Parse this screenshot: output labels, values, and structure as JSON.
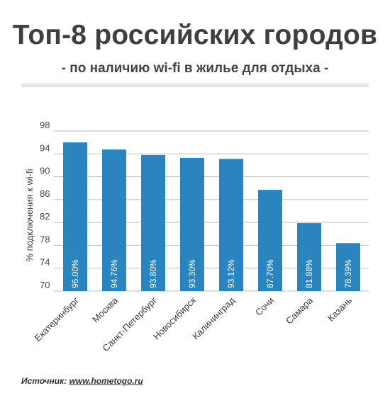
{
  "title": "Топ-8 российских городов",
  "subtitle": "- по наличию wi-fi в жилье для отдыха -",
  "source": {
    "label": "Источник:",
    "link_text": "www.hometogo.ru"
  },
  "colors": {
    "bar": "#2a85bf",
    "grid": "#bdbdbd",
    "bar_label": "#ffffff"
  },
  "chart_data": {
    "type": "bar",
    "categories": [
      "Екатеринбург",
      "Москва",
      "Санкт-Петербург",
      "Новосибирск",
      "Калининград",
      "Сочи",
      "Самара",
      "Казань"
    ],
    "values": [
      96.0,
      94.76,
      93.8,
      93.3,
      93.12,
      87.7,
      81.88,
      78.39
    ],
    "data_labels": [
      "96.00%",
      "94.76%",
      "93.80%",
      "93.30%",
      "93.12%",
      "87.70%",
      "81.88%",
      "78.39%"
    ],
    "title": "Топ-8 российских городов",
    "subtitle": "- по наличию wi-fi в жилье для отдыха -",
    "xlabel": "",
    "ylabel": "% подключения к wi-fi",
    "ylim": [
      70,
      98
    ],
    "yticks": [
      70,
      74,
      78,
      82,
      86,
      90,
      94,
      98
    ],
    "grid": true,
    "legend": "none"
  }
}
